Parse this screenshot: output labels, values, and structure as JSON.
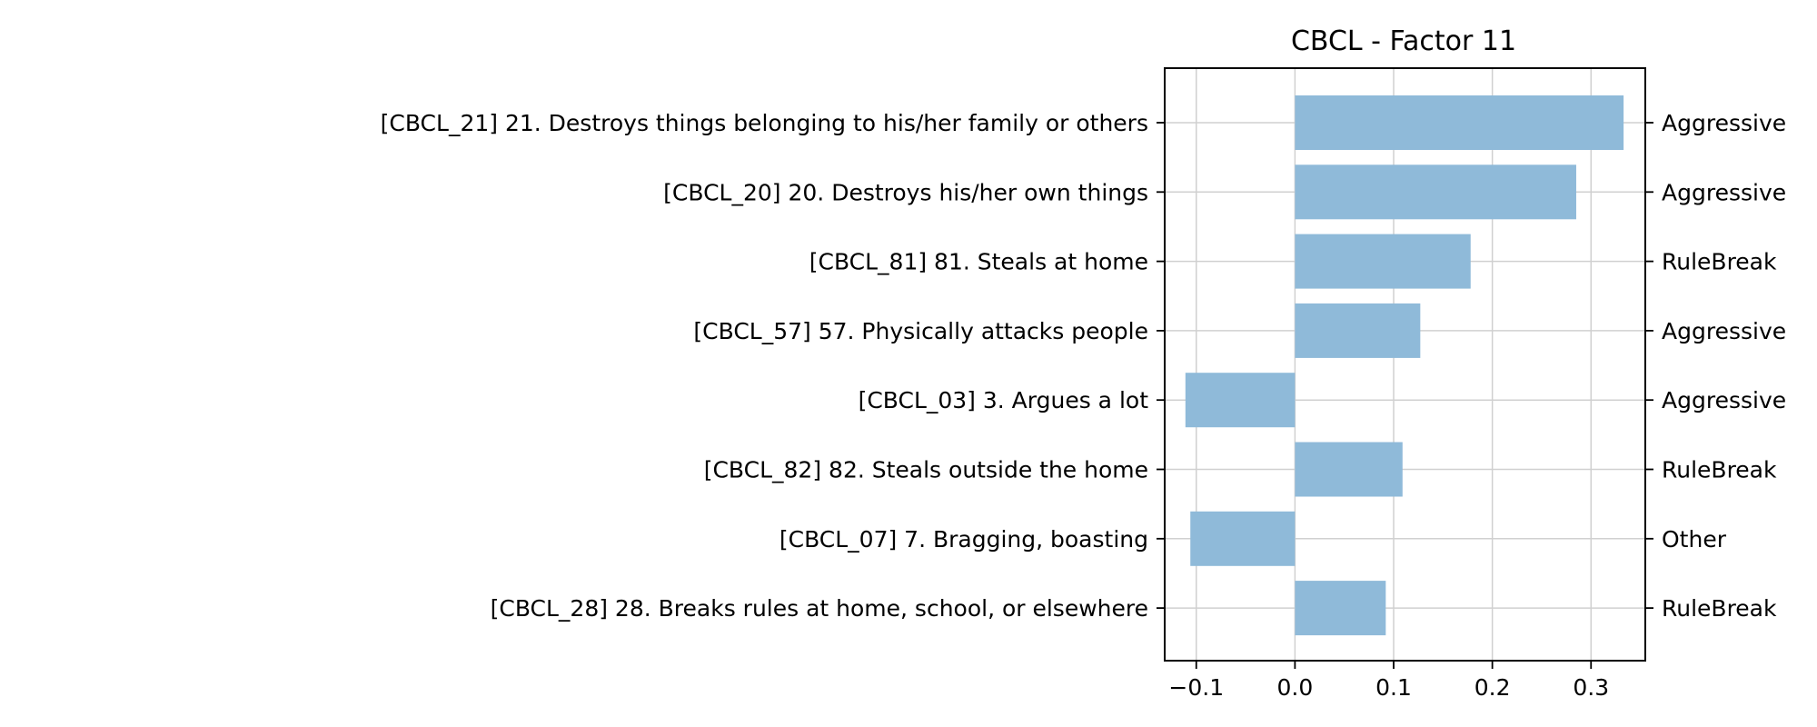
{
  "chart_data": {
    "type": "bar",
    "orientation": "horizontal",
    "title": "CBCL - Factor 11",
    "xlabel": "",
    "ylabel": "",
    "xlim": [
      -0.132,
      0.355
    ],
    "xticks": [
      -0.1,
      0.0,
      0.1,
      0.2,
      0.3
    ],
    "xtick_labels": [
      "−0.1",
      "0.0",
      "0.1",
      "0.2",
      "0.3"
    ],
    "grid": true,
    "bar_color": "#8fbad9",
    "categories": [
      "[CBCL_21] 21. Destroys things belonging to his/her family or others",
      "[CBCL_20] 20. Destroys his/her own things",
      "[CBCL_81] 81. Steals at home",
      "[CBCL_57] 57. Physically attacks people",
      "[CBCL_03] 3. Argues a lot",
      "[CBCL_82] 82. Steals outside the home",
      "[CBCL_07] 7. Bragging, boasting",
      "[CBCL_28] 28. Breaks rules at home, school, or elsewhere"
    ],
    "groups": [
      "Aggressive",
      "Aggressive",
      "RuleBreak",
      "Aggressive",
      "Aggressive",
      "RuleBreak",
      "Other",
      "RuleBreak"
    ],
    "values": [
      0.333,
      0.285,
      0.178,
      0.127,
      -0.111,
      0.109,
      -0.106,
      0.092
    ]
  }
}
